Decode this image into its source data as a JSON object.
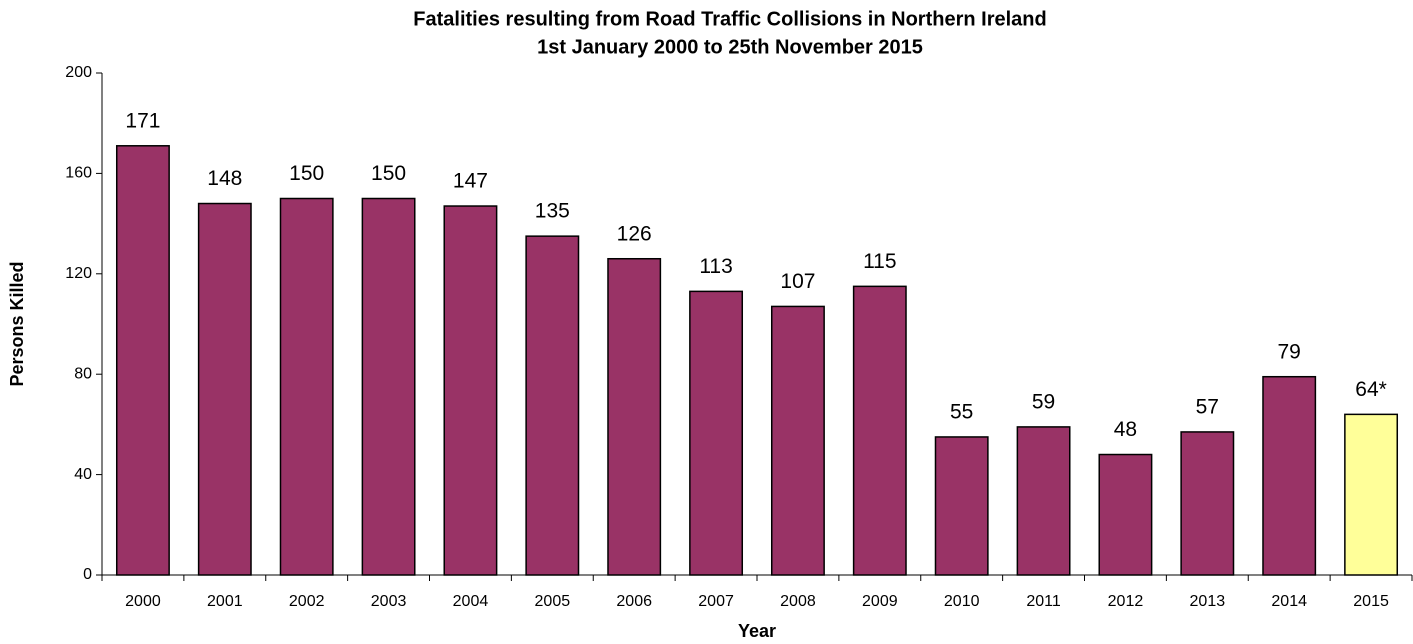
{
  "chart_data": {
    "type": "bar",
    "title": "Fatalities resulting from Road Traffic Collisions in Northern Ireland",
    "subtitle": "1st January 2000 to 25th November 2015",
    "x_label": "Year",
    "y_label": "Persons Killed",
    "categories": [
      "2000",
      "2001",
      "2002",
      "2003",
      "2004",
      "2005",
      "2006",
      "2007",
      "2008",
      "2009",
      "2010",
      "2011",
      "2012",
      "2013",
      "2014",
      "2015"
    ],
    "values": [
      171,
      148,
      150,
      150,
      147,
      135,
      126,
      113,
      107,
      115,
      55,
      59,
      48,
      57,
      79,
      64
    ],
    "value_labels": [
      "171",
      "148",
      "150",
      "150",
      "147",
      "135",
      "126",
      "113",
      "107",
      "115",
      "55",
      "59",
      "48",
      "57",
      "79",
      "64*"
    ],
    "colors": [
      "#993366",
      "#993366",
      "#993366",
      "#993366",
      "#993366",
      "#993366",
      "#993366",
      "#993366",
      "#993366",
      "#993366",
      "#993366",
      "#993366",
      "#993366",
      "#993366",
      "#993366",
      "#ffff99"
    ],
    "ylim": [
      0,
      200
    ],
    "yticks": [
      0,
      40,
      80,
      120,
      160,
      200
    ],
    "grid": false
  }
}
